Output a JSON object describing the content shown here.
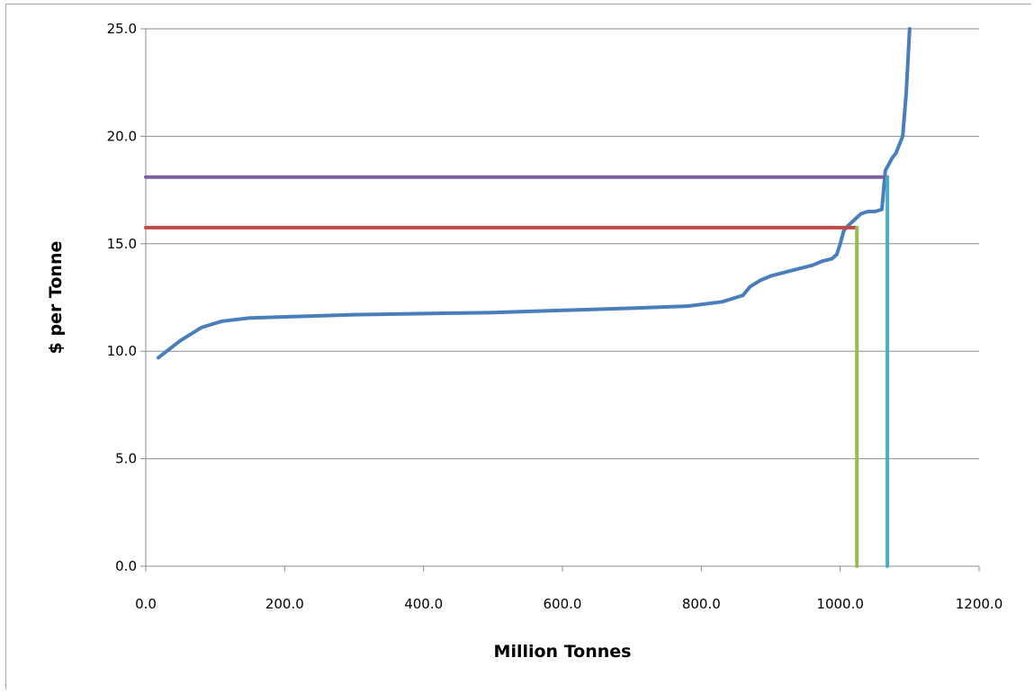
{
  "chart_data": {
    "type": "line",
    "title": "",
    "xlabel": "Million Tonnes",
    "ylabel": "$ per Tonne",
    "xlim": [
      0,
      1200
    ],
    "ylim": [
      0,
      25
    ],
    "x_ticks": [
      "0.0",
      "200.0",
      "400.0",
      "600.0",
      "800.0",
      "1000.0",
      "1200.0"
    ],
    "y_ticks": [
      "0.0",
      "5.0",
      "10.0",
      "15.0",
      "20.0",
      "25.0"
    ],
    "grid": "horizontal",
    "legend": "none",
    "series": [
      {
        "color": "#4a7ebb",
        "x": [
          18,
          30,
          50,
          80,
          110,
          150,
          200,
          300,
          400,
          500,
          600,
          700,
          780,
          830,
          860,
          870,
          885,
          900,
          930,
          960,
          975,
          988,
          995,
          1000,
          1005,
          1010,
          1020,
          1030,
          1040,
          1050,
          1060,
          1065,
          1070,
          1075,
          1080,
          1090,
          1095,
          1100
        ],
        "y": [
          9.7,
          10.0,
          10.5,
          11.1,
          11.4,
          11.55,
          11.6,
          11.7,
          11.75,
          11.8,
          11.9,
          12.0,
          12.1,
          12.3,
          12.6,
          13.0,
          13.3,
          13.5,
          13.75,
          14.0,
          14.2,
          14.3,
          14.5,
          15.0,
          15.6,
          15.8,
          16.1,
          16.4,
          16.5,
          16.5,
          16.6,
          18.4,
          18.7,
          19.0,
          19.2,
          20.0,
          22.0,
          25.0
        ]
      },
      {
        "color": "#be4b48",
        "x": [
          0,
          1024
        ],
        "y": [
          15.75,
          15.75
        ]
      },
      {
        "color": "#7d5fa0",
        "x": [
          0,
          1068
        ],
        "y": [
          18.1,
          18.1
        ]
      },
      {
        "color": "#98b954",
        "x": [
          1024,
          1024
        ],
        "y": [
          0,
          15.75
        ]
      },
      {
        "color": "#4bacc6",
        "x": [
          1068,
          1068
        ],
        "y": [
          0,
          18.1
        ]
      }
    ]
  }
}
